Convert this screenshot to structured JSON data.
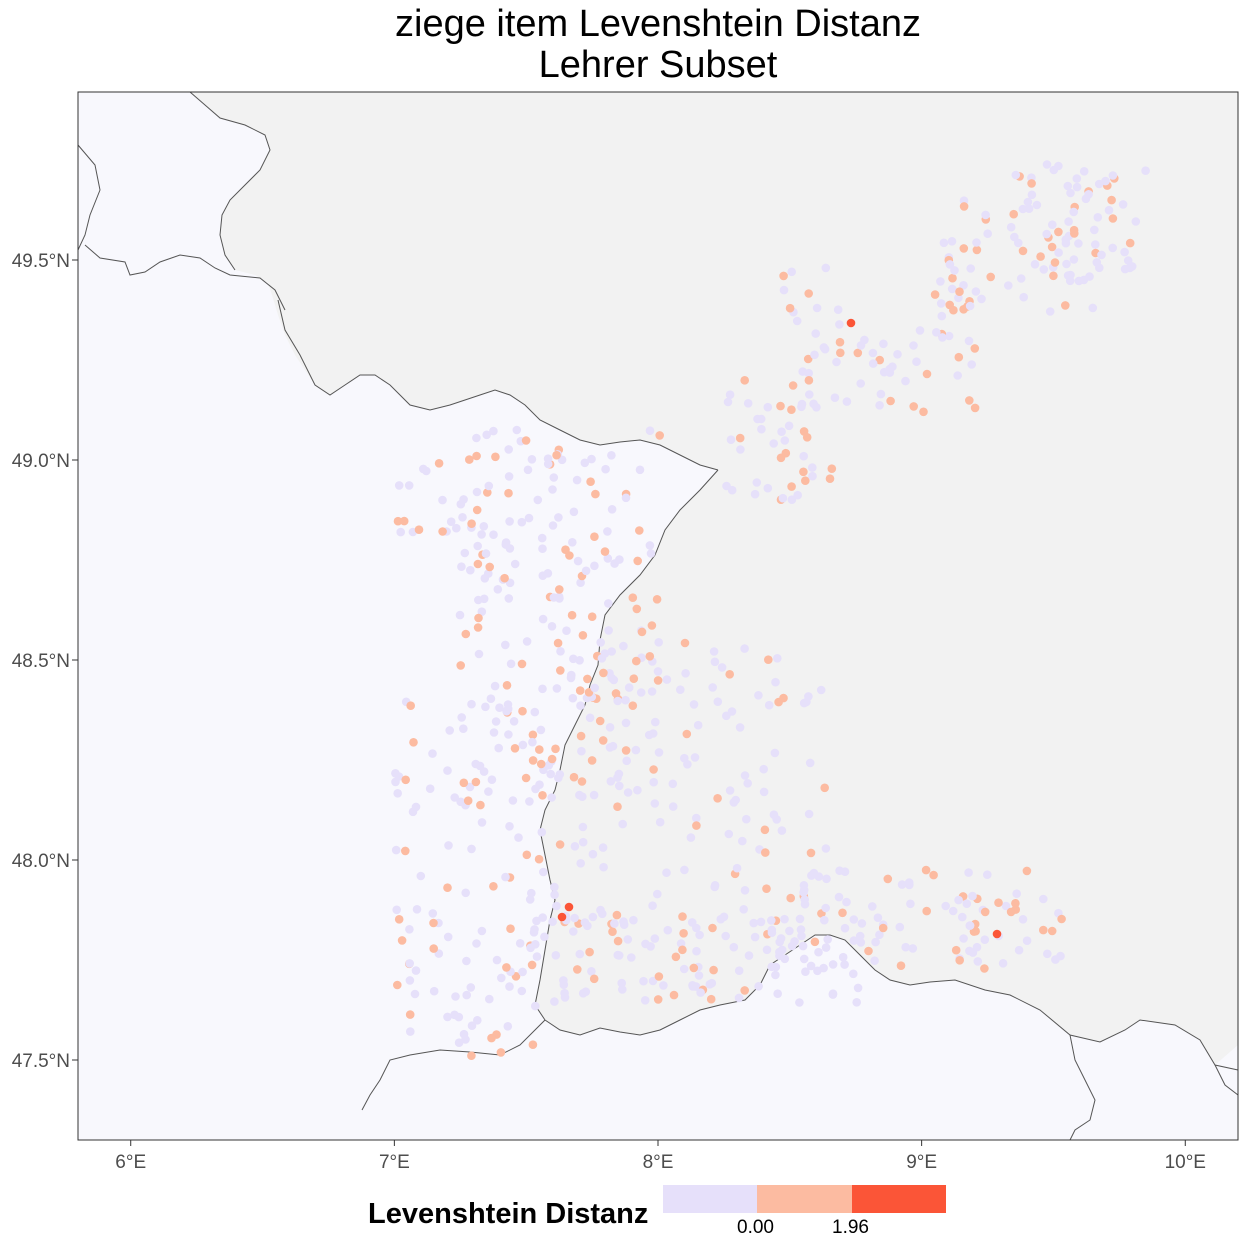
{
  "title": {
    "line1": "ziege item Levenshtein Distanz",
    "line2": "Lehrer Subset"
  },
  "axes": {
    "y_ticks": [
      {
        "value": 49.5,
        "label": "49.5°N"
      },
      {
        "value": 49.0,
        "label": "49.0°N"
      },
      {
        "value": 48.5,
        "label": "48.5°N"
      },
      {
        "value": 48.0,
        "label": "48.0°N"
      },
      {
        "value": 47.5,
        "label": "47.5°N"
      }
    ],
    "x_ticks": [
      {
        "value": 6,
        "label": "6°E"
      },
      {
        "value": 7,
        "label": "7°E"
      },
      {
        "value": 8,
        "label": "8°E"
      },
      {
        "value": 9,
        "label": "9°E"
      },
      {
        "value": 10,
        "label": "10°E"
      }
    ],
    "lon_range": [
      5.8,
      10.2
    ],
    "lat_range": [
      47.3,
      49.92
    ]
  },
  "legend": {
    "title": "Levenshtein Distanz",
    "labels": [
      "0.00",
      "1.96"
    ],
    "colors": [
      "#e6e0fa",
      "#fcbba1",
      "#fb5537"
    ]
  },
  "colors": {
    "land_background": "#f8f8fd",
    "outer_background": "#f2f2f2",
    "border": "#555555",
    "low": "#e6e0fa",
    "mid": "#fcbba1",
    "high": "#fb5537"
  }
}
